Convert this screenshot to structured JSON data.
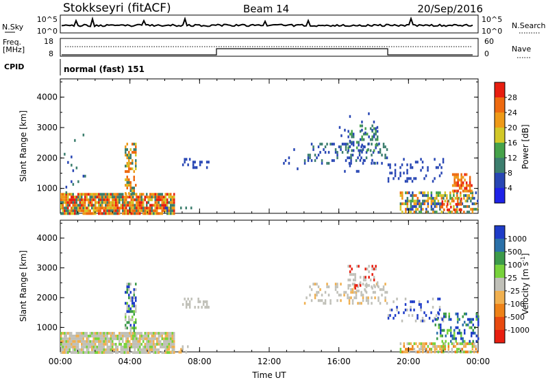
{
  "header": {
    "station": "Stokkseyri (fitACF)",
    "beam": "Beam 14",
    "date": "20/Sep/2016"
  },
  "status": {
    "nsky_label": "N.Sky",
    "nsearch_label": "N.Search",
    "freq_label_1": "Freq.",
    "freq_label_2": "[MHz]",
    "nave_label": "Nave",
    "cpid_label": "CPID",
    "cpid_text": "normal (fast) 151",
    "noise_ticks_left": [
      "10^5",
      "10^0"
    ],
    "noise_ticks_right": [
      "10^5",
      "10^0"
    ],
    "freq_ticks": [
      "18",
      "8"
    ],
    "nave_ticks": [
      "60",
      "0"
    ]
  },
  "chart_data": [
    {
      "type": "heatmap",
      "name": "Power",
      "title": "",
      "xlabel": "",
      "ylabel": "Slant Range [km]",
      "x_ticks": [
        "00:00",
        "04:00",
        "08:00",
        "12:00",
        "16:00",
        "20:00",
        "00:00"
      ],
      "y_ticks": [
        "1000",
        "2000",
        "3000",
        "4000"
      ],
      "xlim_hours": [
        0,
        24
      ],
      "ylim_km": [
        180,
        4600
      ],
      "colorbar": {
        "label": "Power [dB]",
        "ticks": [
          "4",
          "8",
          "12",
          "16",
          "20",
          "24",
          "28"
        ],
        "colors": [
          "#1e22e8",
          "#2846b4",
          "#3c7e6e",
          "#46a24a",
          "#d2c828",
          "#ee9a18",
          "#ee6a10",
          "#e81e10"
        ]
      },
      "regions": [
        {
          "t0": 0.0,
          "t1": 6.5,
          "r0": 180,
          "r1": 850,
          "levels": [
            5,
            6,
            7,
            4,
            2
          ],
          "density": 0.9
        },
        {
          "t0": 3.7,
          "t1": 4.3,
          "r0": 850,
          "r1": 2500,
          "levels": [
            4,
            5,
            6,
            2
          ],
          "density": 0.5
        },
        {
          "t0": 0.2,
          "t1": 1.5,
          "r0": 900,
          "r1": 2800,
          "levels": [
            1,
            2
          ],
          "density": 0.05
        },
        {
          "t0": 6.0,
          "t1": 7.5,
          "r0": 180,
          "r1": 400,
          "levels": [
            1,
            2
          ],
          "density": 0.25
        },
        {
          "t0": 7.0,
          "t1": 8.5,
          "r0": 1700,
          "r1": 2000,
          "levels": [
            1
          ],
          "density": 0.25
        },
        {
          "t0": 12.5,
          "t1": 14.0,
          "r0": 1600,
          "r1": 2500,
          "levels": [
            1
          ],
          "density": 0.05
        },
        {
          "t0": 14.0,
          "t1": 18.8,
          "r0": 1800,
          "r1": 2500,
          "levels": [
            1,
            2
          ],
          "density": 0.25
        },
        {
          "t0": 16.5,
          "t1": 18.2,
          "r0": 2200,
          "r1": 3100,
          "levels": [
            1,
            2,
            3
          ],
          "density": 0.3
        },
        {
          "t0": 16.0,
          "t1": 18.3,
          "r0": 1600,
          "r1": 3500,
          "levels": [
            1
          ],
          "density": 0.05
        },
        {
          "t0": 18.8,
          "t1": 22.0,
          "r0": 1200,
          "r1": 2000,
          "levels": [
            1
          ],
          "density": 0.2
        },
        {
          "t0": 19.5,
          "t1": 24.0,
          "r0": 180,
          "r1": 900,
          "levels": [
            1,
            2,
            3,
            4,
            5,
            6
          ],
          "density": 0.55
        },
        {
          "t0": 22.5,
          "t1": 23.6,
          "r0": 900,
          "r1": 1500,
          "levels": [
            6,
            7,
            5
          ],
          "density": 0.6
        },
        {
          "t0": 21.8,
          "t1": 23.0,
          "r0": 300,
          "r1": 700,
          "levels": [
            6,
            7
          ],
          "density": 0.4
        }
      ]
    },
    {
      "type": "heatmap",
      "name": "Velocity",
      "title": "",
      "xlabel": "Time UT",
      "ylabel": "Slant Range [km]",
      "x_ticks": [
        "00:00",
        "04:00",
        "08:00",
        "12:00",
        "16:00",
        "20:00",
        "00:00"
      ],
      "y_ticks": [
        "1000",
        "2000",
        "3000",
        "4000"
      ],
      "xlim_hours": [
        0,
        24
      ],
      "ylim_km": [
        180,
        4600
      ],
      "colorbar": {
        "label": "Velocity [m s^-1]",
        "ticks": [
          "1000",
          "500",
          "100",
          "25",
          "-25",
          "-100",
          "-500",
          "-1000"
        ],
        "colors": [
          "#1e3cc8",
          "#2a70a8",
          "#3c9a4a",
          "#78d23c",
          "#c0c0b8",
          "#f0b050",
          "#ee8218",
          "#e84a10",
          "#e81e10"
        ]
      },
      "regions": [
        {
          "t0": 0.0,
          "t1": 6.5,
          "r0": 180,
          "r1": 850,
          "levels": [
            4,
            4,
            4,
            5,
            3
          ],
          "density": 0.9
        },
        {
          "t0": 3.7,
          "t1": 4.3,
          "r0": 850,
          "r1": 2500,
          "levels": [
            0,
            2,
            4,
            3
          ],
          "density": 0.5
        },
        {
          "t0": 6.0,
          "t1": 7.5,
          "r0": 180,
          "r1": 400,
          "levels": [
            4,
            5
          ],
          "density": 0.25
        },
        {
          "t0": 7.0,
          "t1": 8.5,
          "r0": 1700,
          "r1": 2000,
          "levels": [
            4
          ],
          "density": 0.25
        },
        {
          "t0": 14.0,
          "t1": 18.8,
          "r0": 1800,
          "r1": 2500,
          "levels": [
            4,
            4,
            5
          ],
          "density": 0.25
        },
        {
          "t0": 16.5,
          "t1": 18.2,
          "r0": 2200,
          "r1": 3100,
          "levels": [
            4,
            4,
            8
          ],
          "density": 0.3
        },
        {
          "t0": 18.8,
          "t1": 22.0,
          "r0": 1200,
          "r1": 2000,
          "levels": [
            4,
            0
          ],
          "density": 0.2
        },
        {
          "t0": 19.5,
          "t1": 24.0,
          "r0": 180,
          "r1": 500,
          "levels": [
            6,
            5,
            3,
            4
          ],
          "density": 0.6
        },
        {
          "t0": 21.5,
          "t1": 24.0,
          "r0": 500,
          "r1": 1500,
          "levels": [
            0,
            1,
            2,
            3
          ],
          "density": 0.35
        }
      ]
    }
  ]
}
